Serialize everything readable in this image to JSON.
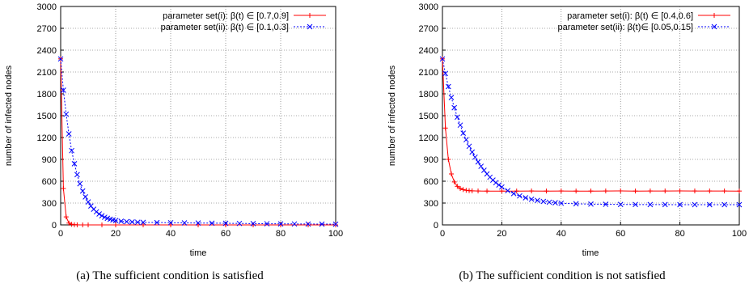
{
  "chart_data": [
    {
      "type": "line",
      "caption": "(a)  The sufficient condition is satisfied",
      "xlabel": "time",
      "ylabel": "number of infected nodes",
      "xlim": [
        0,
        100
      ],
      "ylim": [
        0,
        3000
      ],
      "xticks": [
        "0",
        "20",
        "40",
        "60",
        "80",
        "100"
      ],
      "yticks": [
        "0",
        "300",
        "600",
        "900",
        "1200",
        "1500",
        "1800",
        "2100",
        "2400",
        "2700",
        "3000"
      ],
      "grid": true,
      "legend_position": "top-right",
      "series": [
        {
          "name": "parameter set(i): β(t) ∈ [0.7,0.9]",
          "color": "#ff0000",
          "marker": "plus",
          "points": [
            [
              0,
              2280
            ],
            [
              1,
              500
            ],
            [
              2,
              110
            ],
            [
              3,
              25
            ],
            [
              4,
              8
            ],
            [
              5,
              3
            ],
            [
              6,
              1
            ],
            [
              8,
              0
            ],
            [
              10,
              0
            ],
            [
              15,
              0
            ],
            [
              20,
              0
            ],
            [
              30,
              0
            ],
            [
              40,
              0
            ],
            [
              50,
              0
            ],
            [
              60,
              0
            ],
            [
              70,
              0
            ],
            [
              80,
              0
            ],
            [
              90,
              0
            ],
            [
              100,
              0
            ]
          ]
        },
        {
          "name": "parameter set(ii): β(t) ∈ [0.1,0.3]",
          "color": "#0000ff",
          "marker": "x",
          "points": [
            [
              0,
              2280
            ],
            [
              1,
              1850
            ],
            [
              2,
              1520
            ],
            [
              3,
              1250
            ],
            [
              4,
              1020
            ],
            [
              5,
              840
            ],
            [
              6,
              690
            ],
            [
              7,
              565
            ],
            [
              8,
              465
            ],
            [
              9,
              385
            ],
            [
              10,
              315
            ],
            [
              11,
              260
            ],
            [
              12,
              215
            ],
            [
              13,
              180
            ],
            [
              14,
              150
            ],
            [
              15,
              125
            ],
            [
              16,
              105
            ],
            [
              17,
              90
            ],
            [
              18,
              78
            ],
            [
              19,
              68
            ],
            [
              20,
              60
            ],
            [
              22,
              50
            ],
            [
              24,
              44
            ],
            [
              26,
              40
            ],
            [
              28,
              37
            ],
            [
              30,
              35
            ],
            [
              35,
              32
            ],
            [
              40,
              30
            ],
            [
              45,
              28
            ],
            [
              50,
              26
            ],
            [
              55,
              24
            ],
            [
              60,
              22
            ],
            [
              65,
              20
            ],
            [
              70,
              18
            ],
            [
              75,
              16
            ],
            [
              80,
              14
            ],
            [
              85,
              13
            ],
            [
              90,
              12
            ],
            [
              95,
              11
            ],
            [
              100,
              10
            ]
          ]
        }
      ]
    },
    {
      "type": "line",
      "caption": "(b)  The sufficient condition is not satisfied",
      "xlabel": "time",
      "ylabel": "number of infected nodes",
      "xlim": [
        0,
        100
      ],
      "ylim": [
        0,
        3000
      ],
      "xticks": [
        "0",
        "20",
        "40",
        "60",
        "80",
        "100"
      ],
      "yticks": [
        "0",
        "300",
        "600",
        "900",
        "1200",
        "1500",
        "1800",
        "2100",
        "2400",
        "2700",
        "3000"
      ],
      "grid": true,
      "legend_position": "top-right",
      "series": [
        {
          "name": "parameter set(i): β(t) ∈ [0.4,0.6]",
          "color": "#ff0000",
          "marker": "plus",
          "points": [
            [
              0,
              2280
            ],
            [
              1,
              1330
            ],
            [
              2,
              900
            ],
            [
              3,
              700
            ],
            [
              4,
              590
            ],
            [
              5,
              530
            ],
            [
              6,
              500
            ],
            [
              7,
              485
            ],
            [
              8,
              475
            ],
            [
              9,
              470
            ],
            [
              10,
              468
            ],
            [
              12,
              466
            ],
            [
              15,
              465
            ],
            [
              20,
              465
            ],
            [
              25,
              465
            ],
            [
              30,
              466
            ],
            [
              35,
              465
            ],
            [
              40,
              466
            ],
            [
              45,
              465
            ],
            [
              50,
              465
            ],
            [
              55,
              466
            ],
            [
              60,
              467
            ],
            [
              65,
              465
            ],
            [
              70,
              466
            ],
            [
              75,
              466
            ],
            [
              80,
              467
            ],
            [
              85,
              466
            ],
            [
              90,
              466
            ],
            [
              95,
              466
            ],
            [
              100,
              465
            ]
          ]
        },
        {
          "name": "parameter set(ii): β(t)∈ [0.05,0.15]",
          "color": "#0000ff",
          "marker": "x",
          "points": [
            [
              0,
              2280
            ],
            [
              1,
              2080
            ],
            [
              2,
              1900
            ],
            [
              3,
              1750
            ],
            [
              4,
              1610
            ],
            [
              5,
              1480
            ],
            [
              6,
              1370
            ],
            [
              7,
              1260
            ],
            [
              8,
              1170
            ],
            [
              9,
              1080
            ],
            [
              10,
              1000
            ],
            [
              11,
              930
            ],
            [
              12,
              865
            ],
            [
              13,
              805
            ],
            [
              14,
              750
            ],
            [
              15,
              700
            ],
            [
              16,
              655
            ],
            [
              17,
              615
            ],
            [
              18,
              580
            ],
            [
              19,
              548
            ],
            [
              20,
              520
            ],
            [
              22,
              470
            ],
            [
              24,
              430
            ],
            [
              26,
              398
            ],
            [
              28,
              372
            ],
            [
              30,
              352
            ],
            [
              32,
              336
            ],
            [
              34,
              322
            ],
            [
              36,
              312
            ],
            [
              38,
              304
            ],
            [
              40,
              298
            ],
            [
              45,
              290
            ],
            [
              50,
              286
            ],
            [
              55,
              283
            ],
            [
              60,
              281
            ],
            [
              65,
              280
            ],
            [
              70,
              279
            ],
            [
              75,
              279
            ],
            [
              80,
              278
            ],
            [
              85,
              278
            ],
            [
              90,
              278
            ],
            [
              95,
              278
            ],
            [
              100,
              278
            ]
          ]
        }
      ]
    }
  ]
}
